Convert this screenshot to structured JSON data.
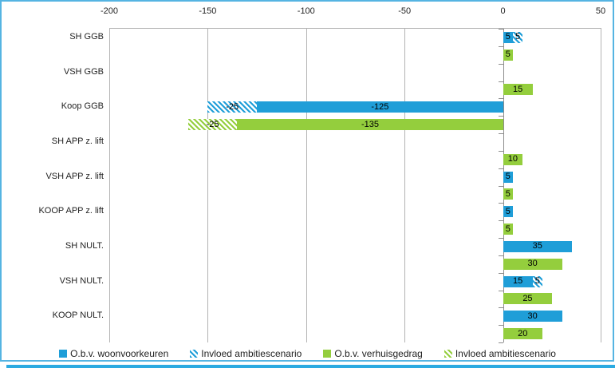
{
  "chart_data": {
    "type": "bar",
    "orientation": "horizontal",
    "title": "",
    "xlabel": "",
    "ylabel": "",
    "xlim": [
      -200,
      50
    ],
    "x_ticks": [
      -200,
      -150,
      -100,
      -50,
      0,
      50
    ],
    "grid": true,
    "legend_position": "bottom",
    "categories": [
      "SH GGB",
      "VSH GGB",
      "Koop GGB",
      "SH APP z. lift",
      "VSH APP z. lift",
      "KOOP APP z. lift",
      "SH NULT.",
      "VSH NULT.",
      "KOOP NULT."
    ],
    "series": [
      {
        "name": "O.b.v. woonvoorkeuren",
        "color": "blue",
        "pattern": "solid",
        "row": 0,
        "values": [
          5,
          0,
          -125,
          0,
          5,
          5,
          35,
          15,
          30
        ]
      },
      {
        "name": "Invloed ambitiescenario",
        "color": "blue",
        "pattern": "hatch",
        "row": 0,
        "values": [
          5,
          0,
          -25,
          0,
          0,
          0,
          0,
          5,
          0
        ]
      },
      {
        "name": "O.b.v. verhuisgedrag",
        "color": "green",
        "pattern": "solid",
        "row": 1,
        "values": [
          5,
          15,
          -135,
          10,
          5,
          5,
          30,
          25,
          20
        ]
      },
      {
        "name": "Invloed ambitiescenario",
        "color": "green",
        "pattern": "hatch",
        "row": 1,
        "values": [
          0,
          0,
          -25,
          0,
          0,
          0,
          0,
          0,
          0
        ]
      }
    ],
    "colors": {
      "blue": "#1F9ED8",
      "green": "#94CE3D",
      "gridline": "#B3B3B3",
      "axis": "#8C8C8C",
      "frame_border": "#55B4E2",
      "bottom_band": "#2BAAE1"
    }
  }
}
